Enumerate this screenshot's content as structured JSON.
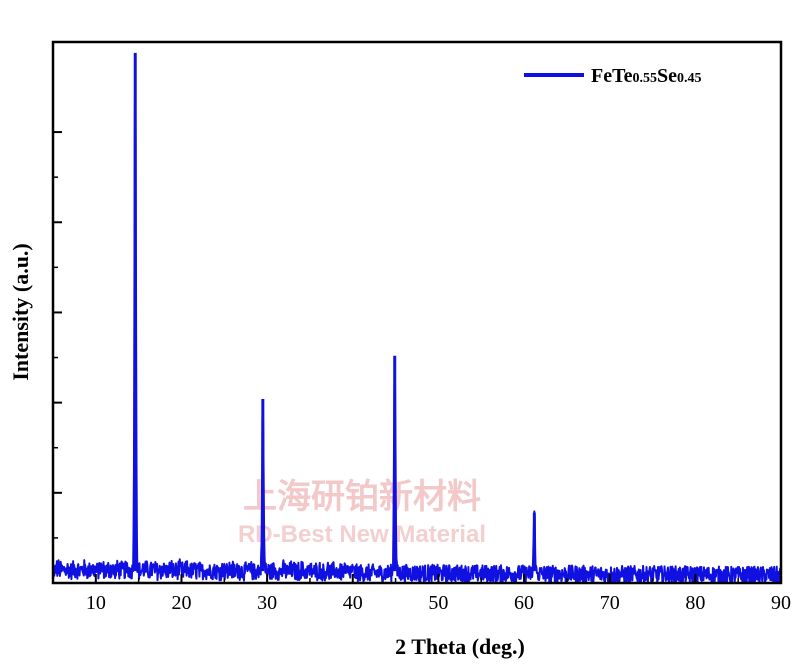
{
  "chart_data": {
    "type": "line",
    "title": "",
    "xlabel": "2 Theta (deg.)",
    "ylabel": "Intensity (a.u.)",
    "xlim": [
      5,
      90
    ],
    "ylim": [
      0,
      100
    ],
    "xticks": [
      10,
      20,
      30,
      40,
      50,
      60,
      70,
      80,
      90
    ],
    "x_tick_labels": [
      "10",
      "20",
      "30",
      "40",
      "50",
      "60",
      "70",
      "80",
      "90"
    ],
    "grid": false,
    "legend": {
      "position": "top-right"
    },
    "series": [
      {
        "name": "FeTe0.55Se0.45",
        "legend_parts": [
          {
            "text": "FeTe",
            "small": false
          },
          {
            "text": "0.55",
            "small": true
          },
          {
            "text": "Se",
            "small": false
          },
          {
            "text": "0.45",
            "small": true
          }
        ],
        "color": "#1010e0",
        "baseline": 2.2,
        "noise_amplitude": 1.6,
        "peaks": [
          {
            "x": 14.6,
            "y": 98
          },
          {
            "x": 29.5,
            "y": 34
          },
          {
            "x": 44.9,
            "y": 42
          },
          {
            "x": 61.2,
            "y": 13
          }
        ]
      }
    ]
  },
  "watermark": {
    "cn": "上海研铂新材料",
    "en": "RD-Best New Material",
    "color": "#f0c0c0"
  }
}
